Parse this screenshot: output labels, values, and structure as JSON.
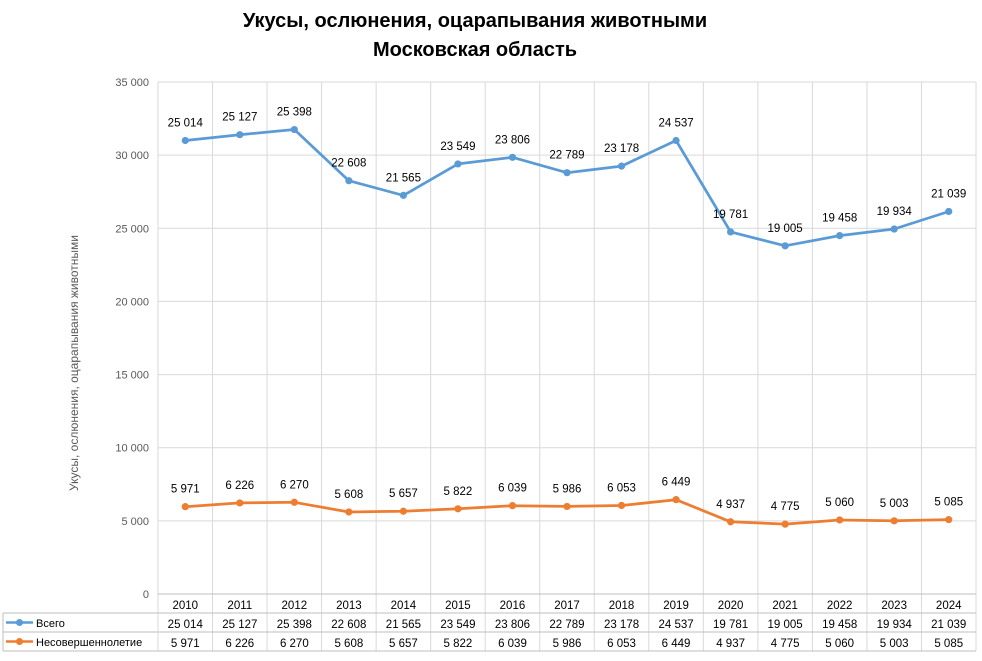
{
  "chart_data": {
    "type": "line",
    "title_line1": "Укусы, ослюнения, оцарапывания животными",
    "title_line2": "Московская область",
    "ylabel": "Укусы, ослюнения, оцарапывания животными",
    "xlabel": "",
    "ylim": [
      0,
      35000
    ],
    "yticks": [
      0,
      5000,
      10000,
      15000,
      20000,
      25000,
      30000,
      35000
    ],
    "ytick_labels": [
      "0",
      "5 000",
      "10 000",
      "15 000",
      "20 000",
      "25 000",
      "30 000",
      "35 000"
    ],
    "grid": "vertical and horizontal",
    "legend": "data table below chart",
    "categories": [
      "2010",
      "2011",
      "2012",
      "2013",
      "2014",
      "2015",
      "2016",
      "2017",
      "2018",
      "2019",
      "2020",
      "2021",
      "2022",
      "2023",
      "2024"
    ],
    "series": [
      {
        "name": "Всего",
        "color": "#5b9bd5",
        "values": [
          31000,
          31400,
          31750,
          28250,
          27250,
          29400,
          29850,
          28800,
          29250,
          31000,
          24750,
          23800,
          24500,
          24950,
          26150
        ],
        "labels": [
          "25 014",
          "25 127",
          "25 398",
          "22 608",
          "21 565",
          "23 549",
          "23 806",
          "22 789",
          "23 178",
          "24 537",
          "19 781",
          "19 005",
          "19 458",
          "19 934",
          "21 039"
        ]
      },
      {
        "name": "Несовершеннолетие",
        "color": "#ed7d31",
        "values": [
          5971,
          6226,
          6270,
          5608,
          5657,
          5822,
          6039,
          5986,
          6053,
          6449,
          4937,
          4775,
          5060,
          5003,
          5085
        ],
        "labels": [
          "5 971",
          "6 226",
          "6 270",
          "5 608",
          "5 657",
          "5 822",
          "6 039",
          "5 986",
          "6 053",
          "6 449",
          "4 937",
          "4 775",
          "5 060",
          "5 003",
          "5 085"
        ]
      }
    ]
  }
}
